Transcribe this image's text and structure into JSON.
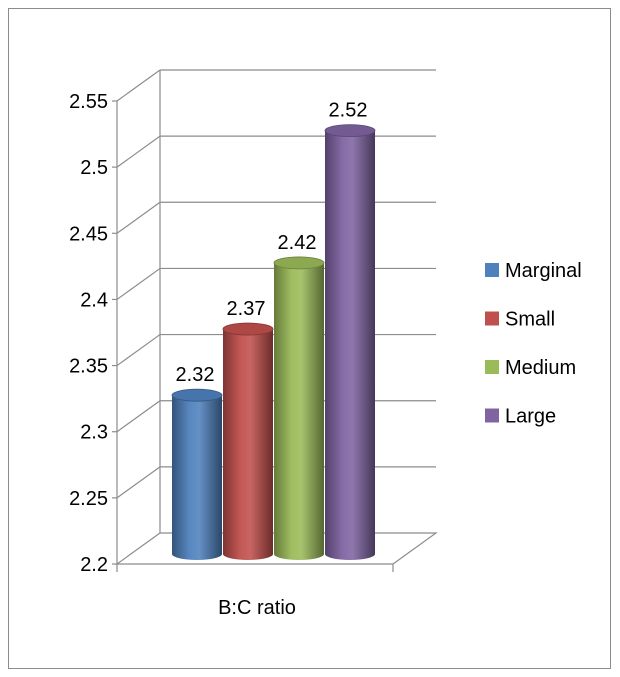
{
  "chart_data": {
    "type": "bar",
    "title": "",
    "xlabel": "",
    "ylabel": "",
    "categories": [
      "B:C ratio"
    ],
    "series": [
      {
        "name": "Marginal",
        "values": [
          2.32
        ],
        "color": "#4f81bd"
      },
      {
        "name": "Small",
        "values": [
          2.37
        ],
        "color": "#c0504d"
      },
      {
        "name": "Medium",
        "values": [
          2.42
        ],
        "color": "#9bbb59"
      },
      {
        "name": "Large",
        "values": [
          2.52
        ],
        "color": "#8064a2"
      }
    ],
    "ylim": [
      2.2,
      2.55
    ],
    "ytick_step": 0.05,
    "ytick_labels": [
      "2.2",
      "2.25",
      "2.3",
      "2.35",
      "2.4",
      "2.45",
      "2.5",
      "2.55"
    ],
    "data_labels": [
      "2.32",
      "2.37",
      "2.42",
      "2.52"
    ],
    "grid": true,
    "legend_position": "right",
    "style": "3d-cylinder"
  }
}
